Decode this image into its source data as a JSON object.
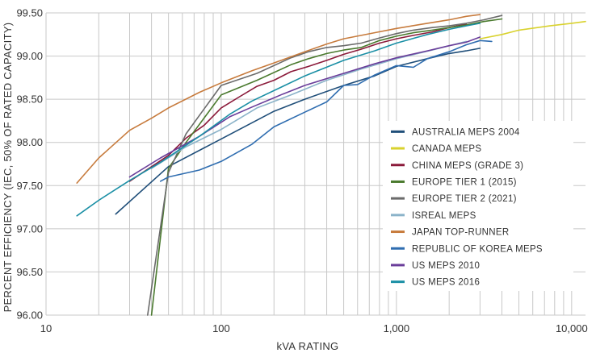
{
  "chart_data": {
    "type": "line",
    "xscale": "log",
    "xlabel": "kVA RATING",
    "ylabel": "PERCENT EFFICIENCY (IEC, 50% OF RATED CAPACITY)",
    "xlim": [
      10,
      12000
    ],
    "ylim": [
      96.0,
      99.5
    ],
    "xticks": [
      10,
      100,
      1000,
      10000
    ],
    "xtick_labels": [
      "10",
      "100",
      "1,000",
      "10,000"
    ],
    "yticks": [
      96.0,
      96.5,
      97.0,
      97.5,
      98.0,
      98.5,
      99.0,
      99.5
    ],
    "ytick_labels": [
      "96.00",
      "96.50",
      "97.00",
      "97.50",
      "98.00",
      "98.50",
      "99.00",
      "99.50"
    ],
    "grid": true,
    "legend_position": "center-right",
    "series": [
      {
        "name": "AUSTRALIA MEPS 2004",
        "color": "#1f4e79",
        "x": [
          25,
          50,
          100,
          200,
          300,
          500,
          750,
          1000,
          1500,
          2000,
          2500,
          3000
        ],
        "y": [
          97.17,
          97.72,
          98.04,
          98.36,
          98.5,
          98.66,
          98.77,
          98.88,
          98.97,
          99.03,
          99.06,
          99.09
        ]
      },
      {
        "name": "CANADA MEPS",
        "color": "#d9d22e",
        "x": [
          3000,
          4000,
          5000,
          7500,
          10000,
          12000
        ],
        "y": [
          99.2,
          99.25,
          99.3,
          99.35,
          99.38,
          99.4
        ]
      },
      {
        "name": "CHINA MEPS (GRADE 3)",
        "color": "#8b1a3a",
        "x": [
          30,
          50,
          63,
          80,
          100,
          125,
          160,
          200,
          250,
          315,
          400,
          500,
          630,
          800,
          1000,
          1250,
          1600,
          2000,
          2500
        ],
        "y": [
          97.55,
          97.85,
          98.05,
          98.2,
          98.4,
          98.52,
          98.65,
          98.72,
          98.82,
          98.88,
          98.95,
          99.02,
          99.08,
          99.15,
          99.2,
          99.24,
          99.28,
          99.33,
          99.37
        ]
      },
      {
        "name": "EUROPE TIER 1 (2015)",
        "color": "#4a7a2e",
        "x": [
          40,
          50,
          63,
          100,
          160,
          250,
          315,
          400,
          500,
          630,
          800,
          1000,
          1250,
          1600,
          2000,
          2500,
          3150,
          4000
        ],
        "y": [
          96.0,
          97.7,
          98.0,
          98.55,
          98.72,
          98.9,
          98.97,
          99.03,
          99.07,
          99.1,
          99.18,
          99.23,
          99.27,
          99.3,
          99.33,
          99.36,
          99.4,
          99.43
        ]
      },
      {
        "name": "EUROPE TIER 2 (2021)",
        "color": "#6b6b6b",
        "x": [
          38,
          50,
          63,
          100,
          160,
          250,
          315,
          400,
          500,
          630,
          800,
          1000,
          1250,
          1600,
          2000,
          2500,
          3150,
          4000
        ],
        "y": [
          96.0,
          97.65,
          98.1,
          98.66,
          98.8,
          98.98,
          99.05,
          99.1,
          99.12,
          99.15,
          99.21,
          99.26,
          99.3,
          99.33,
          99.35,
          99.38,
          99.42,
          99.47
        ]
      },
      {
        "name": "ISREAL MEPS",
        "color": "#8bb3c9",
        "x": [
          40,
          63,
          100,
          160,
          250,
          400,
          630,
          1000,
          1600,
          2500
        ],
        "y": [
          97.7,
          97.95,
          98.15,
          98.4,
          98.55,
          98.72,
          98.85,
          98.97,
          99.07,
          99.17
        ]
      },
      {
        "name": "JAPAN TOP-RUNNER",
        "color": "#c77b3d",
        "x": [
          15,
          20,
          30,
          40,
          50,
          75,
          100,
          150,
          200,
          300,
          400,
          500,
          750,
          1000,
          1500,
          2000,
          2500,
          3000
        ],
        "y": [
          97.53,
          97.82,
          98.14,
          98.28,
          98.4,
          98.58,
          98.69,
          98.83,
          98.92,
          99.05,
          99.14,
          99.2,
          99.27,
          99.32,
          99.38,
          99.42,
          99.46,
          99.48
        ]
      },
      {
        "name": "REPUBLIC OF KOREA MEPS",
        "color": "#2f6db0",
        "x": [
          45,
          50,
          75,
          100,
          150,
          200,
          300,
          400,
          500,
          600,
          750,
          1000,
          1250,
          1500,
          2000,
          2500,
          3000,
          3500
        ],
        "y": [
          97.55,
          97.6,
          97.68,
          97.78,
          97.98,
          98.18,
          98.35,
          98.47,
          98.66,
          98.67,
          98.78,
          98.89,
          98.87,
          98.97,
          99.05,
          99.13,
          99.18,
          99.17
        ]
      },
      {
        "name": "US MEPS 2010",
        "color": "#6a3d9a",
        "x": [
          30,
          45,
          75,
          112.5,
          150,
          225,
          300,
          500,
          750,
          1000,
          1500,
          2000,
          2500,
          3000
        ],
        "y": [
          97.6,
          97.82,
          98.07,
          98.3,
          98.41,
          98.56,
          98.66,
          98.8,
          98.91,
          98.98,
          99.06,
          99.12,
          99.16,
          99.22
        ]
      },
      {
        "name": "US MEPS 2016",
        "color": "#1a8fa5",
        "x": [
          15,
          20,
          30,
          45,
          75,
          112.5,
          150,
          225,
          300,
          500,
          750,
          1000,
          1500,
          2000,
          2500,
          3000
        ],
        "y": [
          97.15,
          97.33,
          97.56,
          97.77,
          98.07,
          98.33,
          98.48,
          98.65,
          98.77,
          98.95,
          99.06,
          99.15,
          99.25,
          99.31,
          99.35,
          99.38
        ]
      }
    ]
  }
}
